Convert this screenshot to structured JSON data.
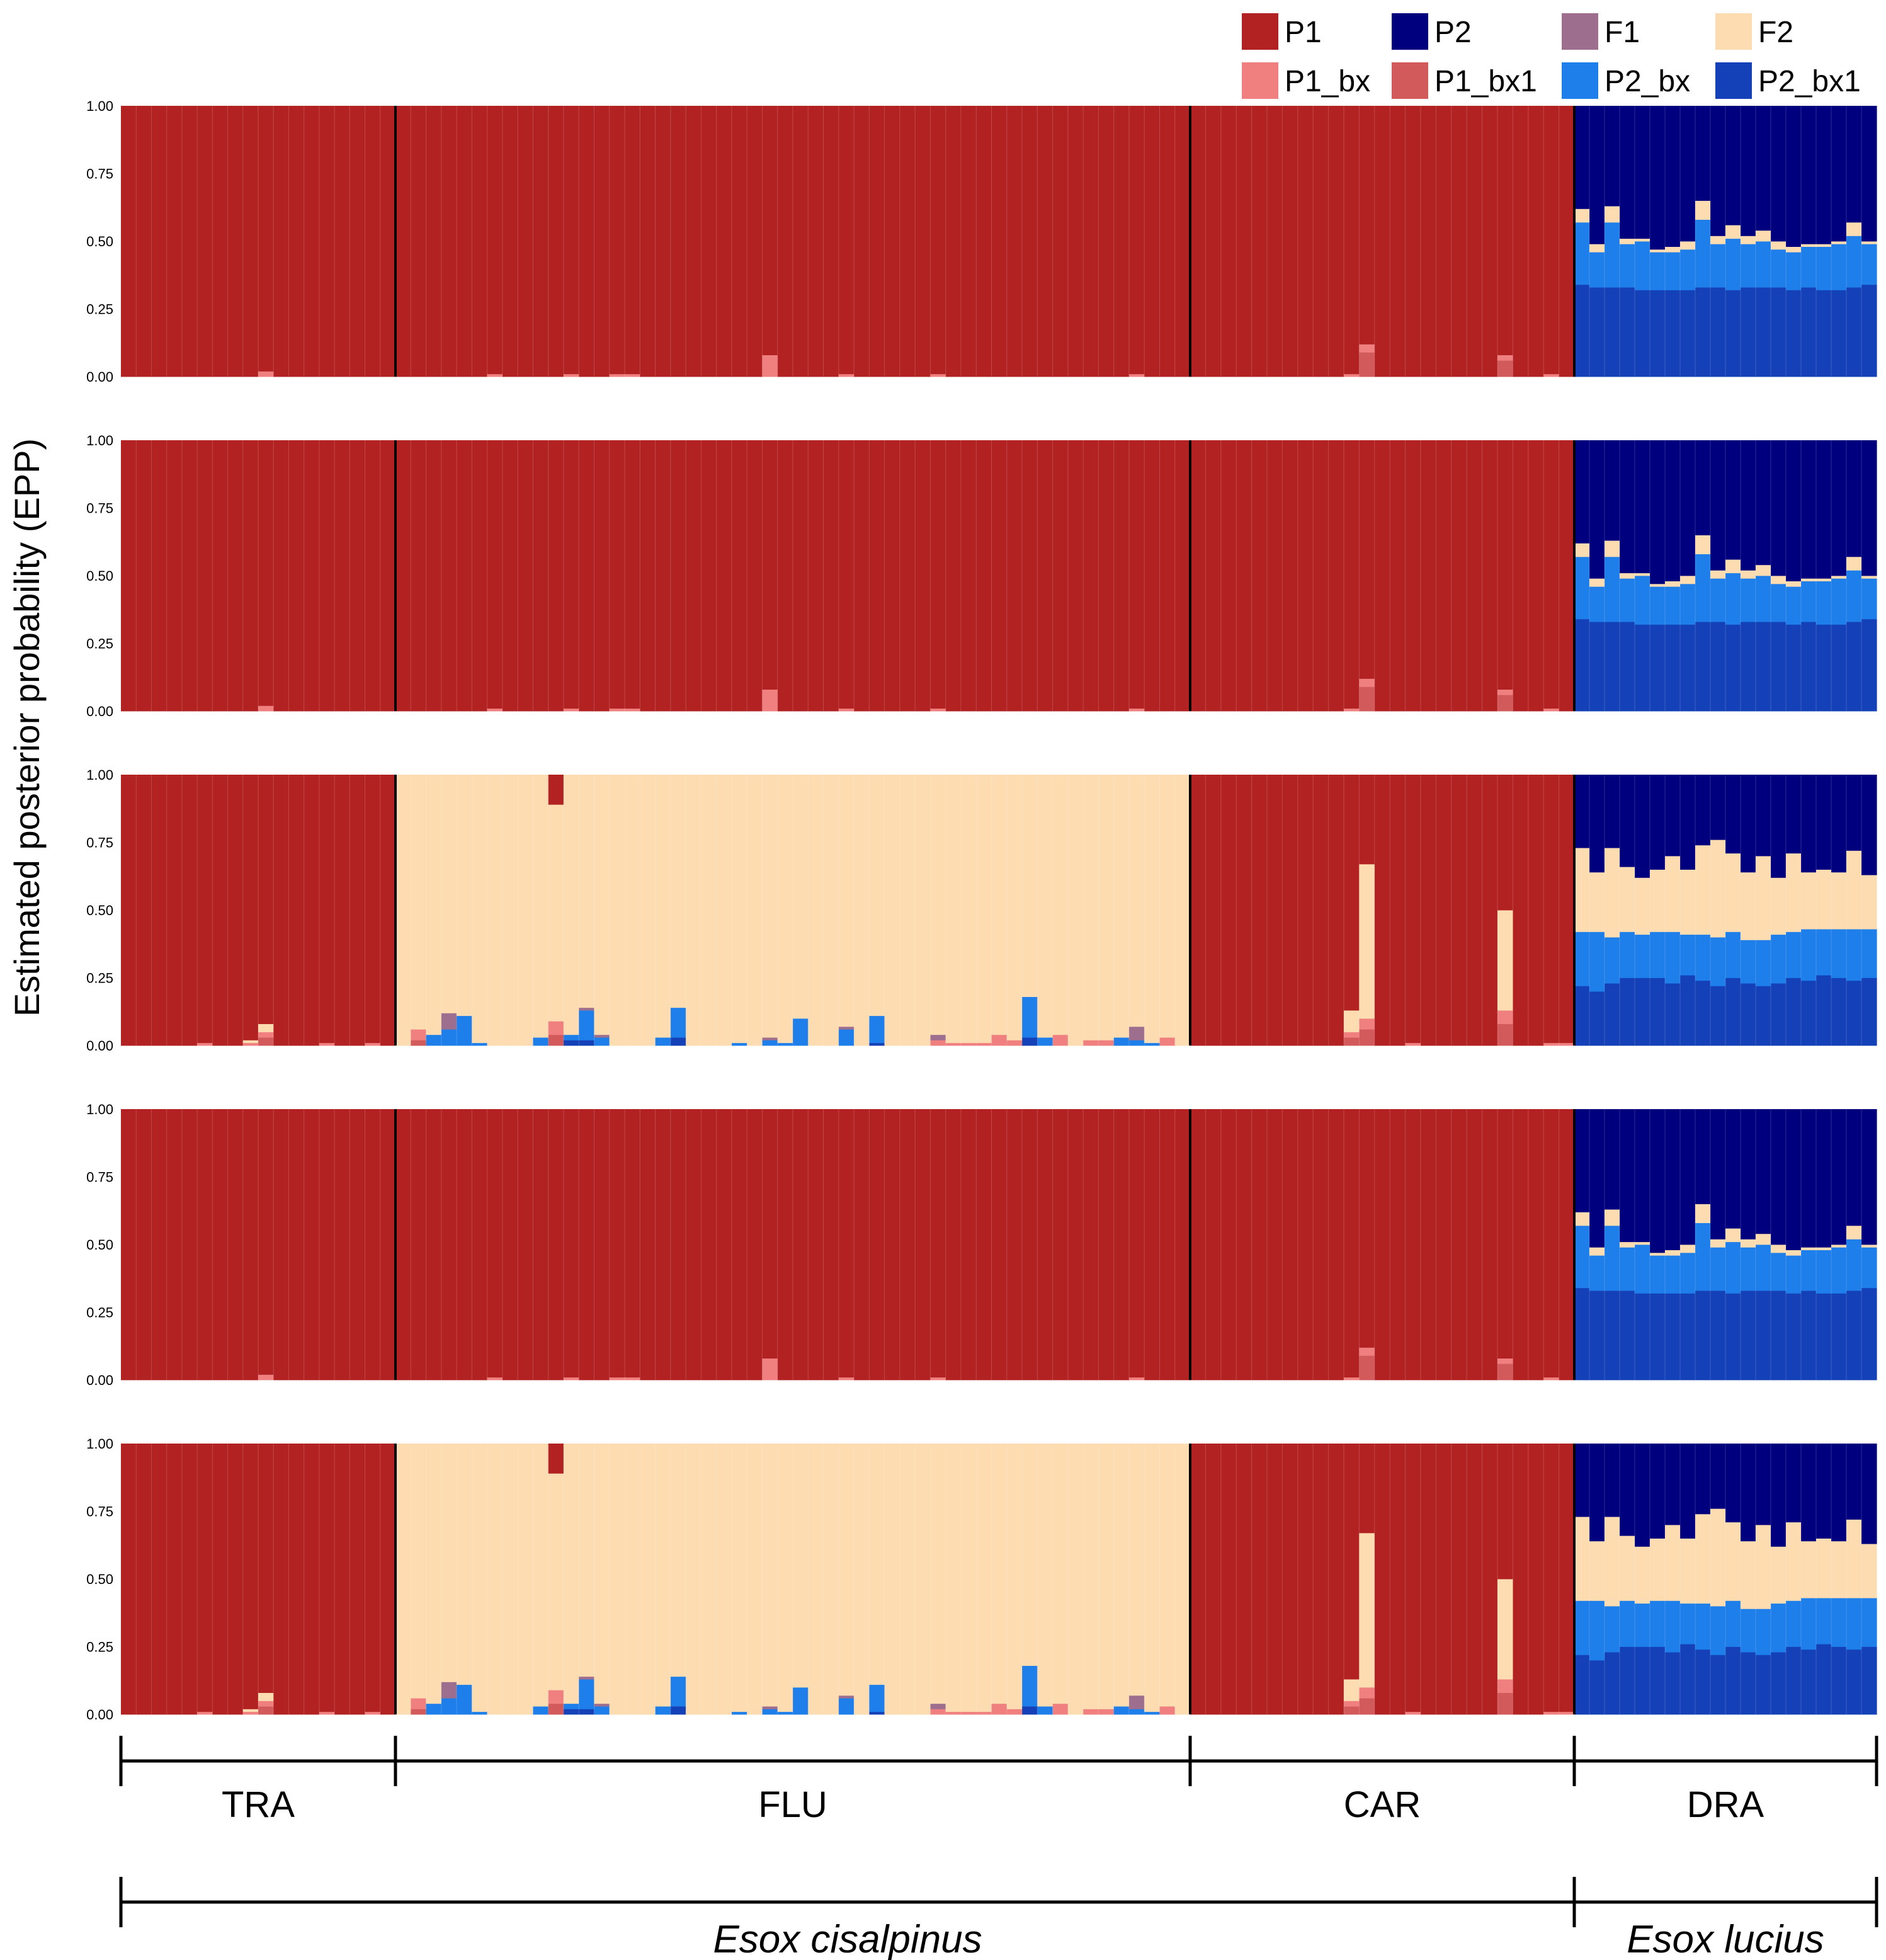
{
  "chart_data": {
    "type": "bar",
    "subtype": "stacked-100-percent structure plot",
    "ylabel": "Estimated posterior probability (EPP)",
    "ylim": [
      0,
      1
    ],
    "yticks": [
      "0.00",
      "0.25",
      "0.50",
      "0.75",
      "1.00"
    ],
    "classes": [
      {
        "key": "P1",
        "label": "P1",
        "color": "#B22222"
      },
      {
        "key": "P2",
        "label": "P2",
        "color": "#00007F"
      },
      {
        "key": "F1",
        "label": "F1",
        "color": "#9E6E8E"
      },
      {
        "key": "F2",
        "label": "F2",
        "color": "#FCDCB0"
      },
      {
        "key": "P1_bx",
        "label": "P1_bx",
        "color": "#F08080"
      },
      {
        "key": "P1_bx1",
        "label": "P1_bx1",
        "color": "#D25A5A"
      },
      {
        "key": "P2_bx",
        "label": "P2_bx",
        "color": "#1F7FEA"
      },
      {
        "key": "P2_bx1",
        "label": "P2_bx1",
        "color": "#1440B8"
      }
    ],
    "populations": [
      {
        "label": "TRA",
        "n": 18
      },
      {
        "label": "FLU",
        "n": 52
      },
      {
        "label": "CAR",
        "n": 25
      },
      {
        "label": "DRA",
        "n": 20
      }
    ],
    "species": [
      {
        "label": "Esox cisalpinus",
        "populations": [
          "TRA",
          "FLU",
          "CAR"
        ]
      },
      {
        "label": "Esox lucius",
        "populations": [
          "DRA"
        ]
      }
    ],
    "panel_variants": [
      "A",
      "A",
      "B",
      "A",
      "B"
    ],
    "variant_A": {
      "TRA": {
        "base": "P1",
        "exceptions": [
          {
            "index": 9,
            "P1_bx": 0.02
          }
        ]
      },
      "FLU": {
        "base": "P1",
        "exceptions": [
          {
            "index": 6,
            "P1_bx": 0.01
          },
          {
            "index": 11,
            "P1_bx": 0.01
          },
          {
            "index": 14,
            "P1_bx": 0.01
          },
          {
            "index": 15,
            "P1_bx": 0.01
          },
          {
            "index": 24,
            "P1_bx": 0.08
          },
          {
            "index": 29,
            "P1_bx": 0.01
          },
          {
            "index": 35,
            "P1_bx": 0.01
          },
          {
            "index": 48,
            "P1_bx": 0.01
          }
        ]
      },
      "CAR": {
        "base": "P1",
        "exceptions": [
          {
            "index": 10,
            "P1_bx": 0.01
          },
          {
            "index": 11,
            "P1_bx1": 0.09,
            "P1_bx": 0.03
          },
          {
            "index": 20,
            "P1_bx1": 0.06,
            "P1_bx": 0.02
          },
          {
            "index": 23,
            "P1_bx": 0.01
          }
        ]
      },
      "DRA": {
        "P2_bx1": [
          0.34,
          0.33,
          0.33,
          0.33,
          0.32,
          0.32,
          0.32,
          0.32,
          0.33,
          0.33,
          0.32,
          0.33,
          0.33,
          0.33,
          0.32,
          0.33,
          0.32,
          0.32,
          0.33,
          0.34
        ],
        "P2_bx": [
          0.23,
          0.13,
          0.24,
          0.16,
          0.18,
          0.14,
          0.14,
          0.15,
          0.25,
          0.16,
          0.19,
          0.16,
          0.17,
          0.14,
          0.14,
          0.15,
          0.16,
          0.17,
          0.19,
          0.15
        ],
        "F2": [
          0.05,
          0.03,
          0.06,
          0.02,
          0.01,
          0.01,
          0.02,
          0.03,
          0.07,
          0.03,
          0.05,
          0.03,
          0.04,
          0.03,
          0.02,
          0.01,
          0.01,
          0.01,
          0.05,
          0.01
        ]
      }
    },
    "variant_B": {
      "TRA": {
        "base": "P1",
        "exceptions": [
          {
            "index": 5,
            "P1_bx": 0.01
          },
          {
            "index": 8,
            "P1_bx": 0.01,
            "F2": 0.01
          },
          {
            "index": 9,
            "P1_bx1": 0.03,
            "P1_bx": 0.02,
            "F2": 0.03
          },
          {
            "index": 13,
            "P1_bx": 0.01
          },
          {
            "index": 16,
            "P1_bx": 0.01
          }
        ]
      },
      "FLU": {
        "base": "F2",
        "exceptions": [
          {
            "index": 1,
            "P1_bx1": 0.02,
            "P1_bx": 0.04
          },
          {
            "index": 2,
            "P2_bx": 0.04
          },
          {
            "index": 3,
            "P2_bx": 0.06,
            "F1": 0.06
          },
          {
            "index": 4,
            "P2_bx": 0.11
          },
          {
            "index": 5,
            "P2_bx": 0.01
          },
          {
            "index": 9,
            "P2_bx": 0.03
          },
          {
            "index": 10,
            "P1_bx1": 0.04,
            "P1_bx": 0.05,
            "P1": 0.11
          },
          {
            "index": 11,
            "P2_bx1": 0.02,
            "P2_bx": 0.02
          },
          {
            "index": 12,
            "P2_bx1": 0.02,
            "P2_bx": 0.11,
            "F1": 0.01
          },
          {
            "index": 13,
            "P2_bx": 0.03,
            "F1": 0.01
          },
          {
            "index": 17,
            "P2_bx": 0.03
          },
          {
            "index": 18,
            "P2_bx1": 0.03,
            "P2_bx": 0.11
          },
          {
            "index": 22,
            "P2_bx": 0.01
          },
          {
            "index": 24,
            "P2_bx": 0.02,
            "F1": 0.01
          },
          {
            "index": 25,
            "P2_bx": 0.01
          },
          {
            "index": 26,
            "P2_bx": 0.1
          },
          {
            "index": 29,
            "P2_bx": 0.06,
            "F1": 0.01
          },
          {
            "index": 31,
            "P2_bx1": 0.01,
            "P2_bx": 0.1
          },
          {
            "index": 35,
            "P1_bx": 0.02,
            "F1": 0.02
          },
          {
            "index": 36,
            "P1_bx": 0.01
          },
          {
            "index": 37,
            "P1_bx": 0.01
          },
          {
            "index": 38,
            "P1_bx": 0.01
          },
          {
            "index": 39,
            "P1_bx": 0.04
          },
          {
            "index": 40,
            "P1_bx": 0.02
          },
          {
            "index": 41,
            "P2_bx1": 0.03,
            "P2_bx": 0.15
          },
          {
            "index": 42,
            "P2_bx": 0.03
          },
          {
            "index": 43,
            "P1_bx": 0.04
          },
          {
            "index": 45,
            "P1_bx": 0.02
          },
          {
            "index": 46,
            "P1_bx": 0.02
          },
          {
            "index": 47,
            "P2_bx": 0.03
          },
          {
            "index": 48,
            "P2_bx": 0.02,
            "F1": 0.05
          },
          {
            "index": 49,
            "P2_bx": 0.01
          },
          {
            "index": 50,
            "P1_bx": 0.03
          }
        ]
      },
      "CAR": {
        "base": "P1",
        "exceptions": [
          {
            "index": 10,
            "P1_bx1": 0.03,
            "P1_bx": 0.02,
            "F2": 0.08
          },
          {
            "index": 11,
            "P1_bx1": 0.06,
            "P1_bx": 0.04,
            "F2": 0.57
          },
          {
            "index": 14,
            "P1_bx": 0.01
          },
          {
            "index": 20,
            "P1_bx1": 0.08,
            "P1_bx": 0.05,
            "F2": 0.37
          },
          {
            "index": 23,
            "P1_bx": 0.01
          },
          {
            "index": 24,
            "P1_bx": 0.01
          }
        ]
      },
      "DRA": {
        "P2_bx1": [
          0.22,
          0.2,
          0.23,
          0.25,
          0.25,
          0.25,
          0.23,
          0.26,
          0.24,
          0.22,
          0.25,
          0.23,
          0.22,
          0.23,
          0.25,
          0.24,
          0.26,
          0.25,
          0.24,
          0.25
        ],
        "P2_bx": [
          0.2,
          0.22,
          0.17,
          0.17,
          0.16,
          0.17,
          0.19,
          0.15,
          0.17,
          0.18,
          0.17,
          0.16,
          0.17,
          0.18,
          0.17,
          0.19,
          0.17,
          0.18,
          0.19,
          0.18
        ],
        "F2": [
          0.31,
          0.22,
          0.33,
          0.24,
          0.21,
          0.23,
          0.28,
          0.24,
          0.33,
          0.36,
          0.29,
          0.25,
          0.31,
          0.21,
          0.29,
          0.21,
          0.22,
          0.21,
          0.29,
          0.2
        ]
      }
    }
  },
  "axis_labels": {
    "populations": [
      "TRA",
      "FLU",
      "CAR",
      "DRA"
    ],
    "species_cisalpinus": "Esox cisalpinus",
    "species_lucius": "Esox lucius"
  }
}
